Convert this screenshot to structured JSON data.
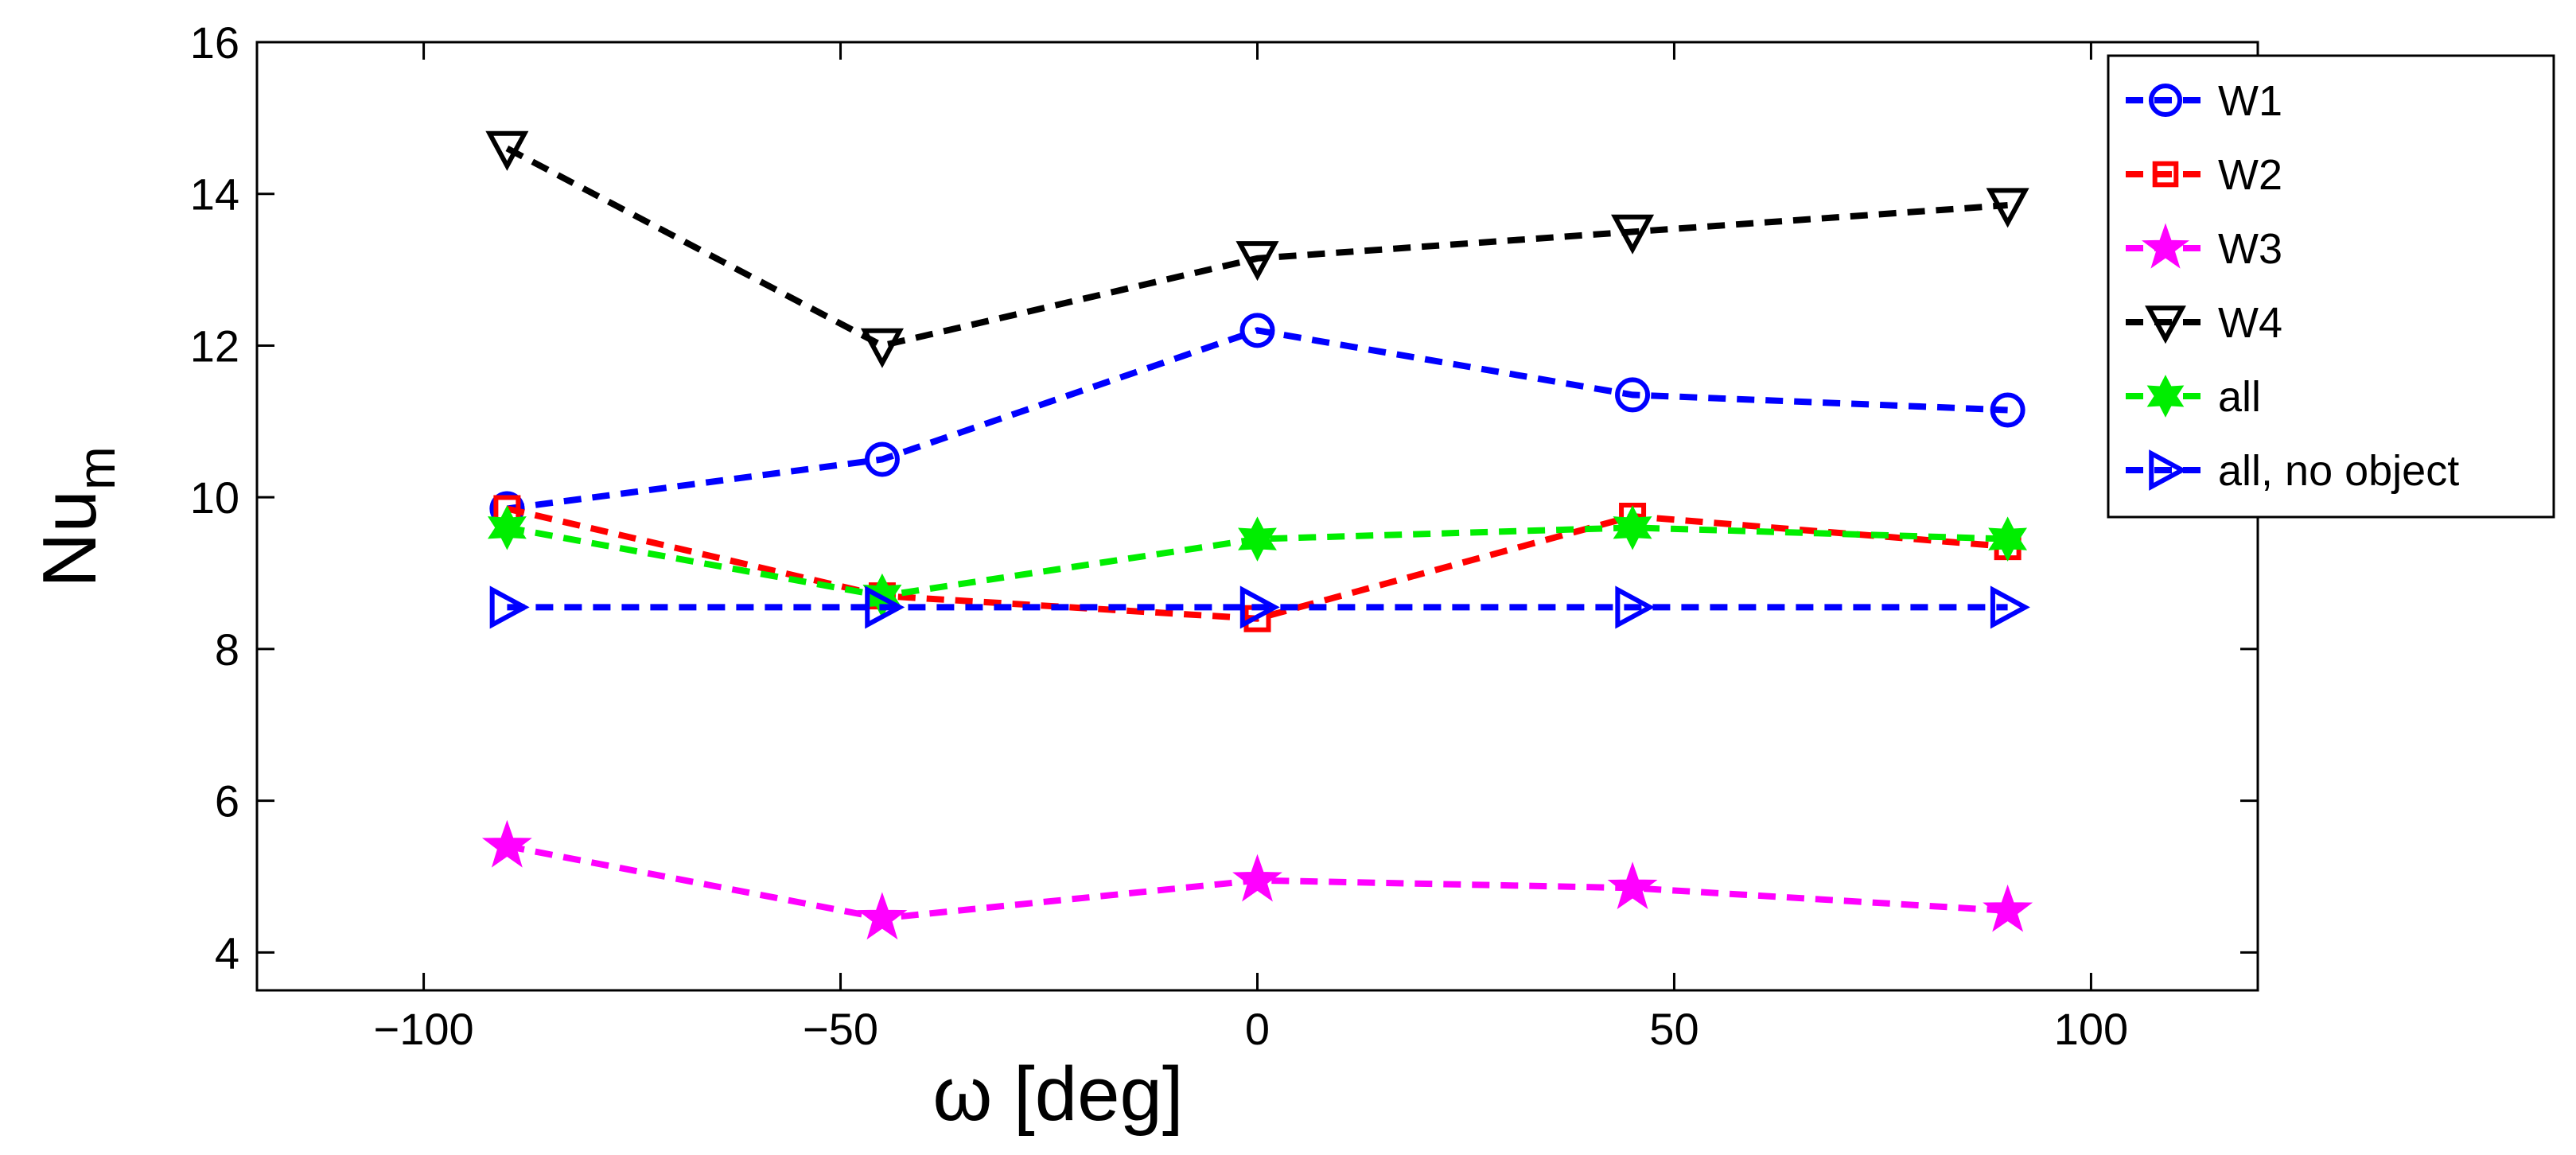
{
  "chart_data": {
    "type": "line",
    "title": "",
    "xlabel": "ω [deg]",
    "ylabel": "Nu",
    "ylabel_subscript": "m",
    "xlim": [
      -120,
      120
    ],
    "ylim": [
      3.5,
      16
    ],
    "xticks": [
      -100,
      -50,
      0,
      50,
      100
    ],
    "xtick_labels": [
      "−100",
      "−50",
      "0",
      "50",
      "100"
    ],
    "yticks": [
      4,
      6,
      8,
      10,
      12,
      14,
      16
    ],
    "ytick_labels": [
      "4",
      "6",
      "8",
      "10",
      "12",
      "14",
      "16"
    ],
    "grid": false,
    "legend_position": "top-right",
    "x": [
      -90,
      -45,
      0,
      45,
      90
    ],
    "series": [
      {
        "name": "W1",
        "values": [
          9.85,
          10.5,
          12.2,
          11.35,
          11.15
        ],
        "color": "#0000ff",
        "marker": "circle"
      },
      {
        "name": "W2",
        "values": [
          9.85,
          8.7,
          8.4,
          9.75,
          9.35
        ],
        "color": "#ff0000",
        "marker": "square"
      },
      {
        "name": "W3",
        "values": [
          5.4,
          4.45,
          4.95,
          4.85,
          4.55
        ],
        "color": "#ff00ff",
        "marker": "star"
      },
      {
        "name": "W4",
        "values": [
          14.6,
          12.0,
          13.15,
          13.5,
          13.85
        ],
        "color": "#000000",
        "marker": "triangle-down"
      },
      {
        "name": "all",
        "values": [
          9.6,
          8.7,
          9.45,
          9.6,
          9.45
        ],
        "color": "#00ee00",
        "marker": "hexagram"
      },
      {
        "name": "all, no object",
        "values": [
          8.55,
          8.55,
          8.55,
          8.55,
          8.55
        ],
        "color": "#0000ff",
        "marker": "triangle-right"
      }
    ]
  }
}
